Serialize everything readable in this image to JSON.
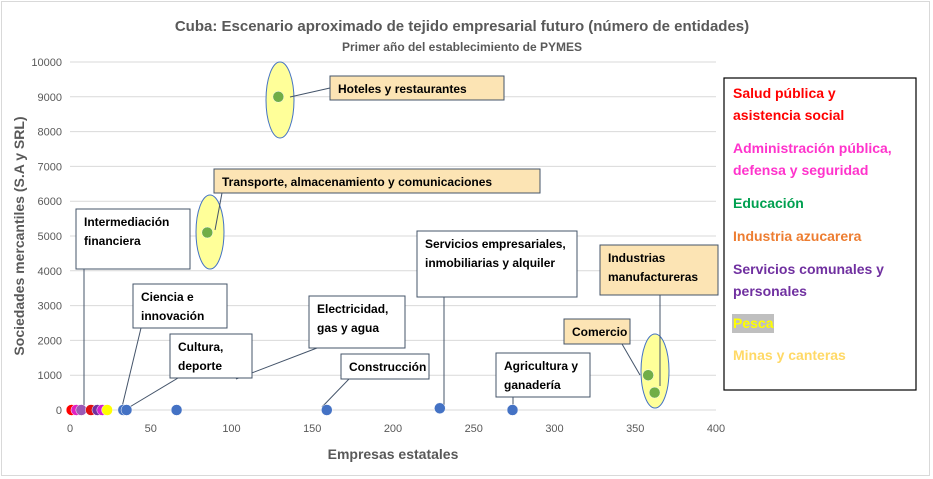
{
  "chart_data": {
    "type": "scatter",
    "title": "Cuba: Escenario aproximado de tejido empresarial futuro (número de entidades)",
    "subtitle": "Primer año del establecimiento de PYMES",
    "xlabel": "Empresas estatales",
    "ylabel": "Sociedades mercantiles (S.A y SRL)",
    "xlim": [
      0,
      400
    ],
    "ylim": [
      0,
      10000
    ],
    "x_ticks": [
      "0",
      "50",
      "100",
      "150",
      "200",
      "250",
      "300",
      "350",
      "400"
    ],
    "y_ticks": [
      "0",
      "1000",
      "2000",
      "3000",
      "4000",
      "5000",
      "6000",
      "7000",
      "8000",
      "9000",
      "10000"
    ],
    "grid": "horizontal",
    "legend_position": "right",
    "points": [
      {
        "x": 1,
        "y": 0,
        "color": "#ff0000"
      },
      {
        "x": 4,
        "y": 0,
        "color": "#e020c0"
      },
      {
        "x": 7,
        "y": 0,
        "color": "#9b59b6"
      },
      {
        "x": 13,
        "y": 0,
        "color": "#e01010"
      },
      {
        "x": 17,
        "y": 0,
        "color": "#7030a0"
      },
      {
        "x": 20,
        "y": 0,
        "color": "#d020d0"
      },
      {
        "x": 23,
        "y": 0,
        "color": "#ffff00"
      },
      {
        "x": 33,
        "y": 0,
        "color": "#4472c4"
      },
      {
        "x": 35,
        "y": 0,
        "color": "#4472c4"
      },
      {
        "x": 66,
        "y": 0,
        "color": "#4472c4"
      },
      {
        "x": 85,
        "y": 5100,
        "color": "#70ad47"
      },
      {
        "x": 129,
        "y": 9000,
        "color": "#70ad47"
      },
      {
        "x": 159,
        "y": 0,
        "color": "#4472c4"
      },
      {
        "x": 229,
        "y": 50,
        "color": "#4472c4"
      },
      {
        "x": 274,
        "y": 0,
        "color": "#4472c4"
      },
      {
        "x": 358,
        "y": 1000,
        "color": "#70ad47"
      },
      {
        "x": 362,
        "y": 500,
        "color": "#70ad47"
      }
    ],
    "annotations": [
      {
        "lines": [
          "Hoteles y restaurantes"
        ]
      },
      {
        "lines": [
          "Transporte, almacenamiento y comunicaciones"
        ]
      },
      {
        "lines": [
          "Intermediación",
          "financiera"
        ]
      },
      {
        "lines": [
          "Servicios empresariales,",
          "inmobiliarias y alquiler"
        ]
      },
      {
        "lines": [
          "Industrias",
          "manufactureras"
        ]
      },
      {
        "lines": [
          "Ciencia e",
          "innovación"
        ]
      },
      {
        "lines": [
          "Electricidad,",
          "gas y agua"
        ]
      },
      {
        "lines": [
          "Cultura,",
          "deporte"
        ]
      },
      {
        "lines": [
          "Construcción"
        ]
      },
      {
        "lines": [
          "Agricultura y",
          "ganadería"
        ]
      },
      {
        "lines": [
          "Comercio"
        ]
      }
    ],
    "legend": [
      {
        "lines": [
          "Salud pública y",
          "asistencia social"
        ],
        "color": "#ff0000"
      },
      {
        "lines": [
          "Administración pública,",
          "defensa y seguridad"
        ],
        "color": "#ff33cc"
      },
      {
        "lines": [
          "Educación"
        ],
        "color": "#00a050"
      },
      {
        "lines": [
          "Industria azucarera"
        ],
        "color": "#ed7d31"
      },
      {
        "lines": [
          "Servicios comunales y",
          "personales"
        ],
        "color": "#7030a0"
      },
      {
        "lines": [
          "Pesca"
        ],
        "color": "#ffff00"
      },
      {
        "lines": [
          "Minas y canteras"
        ],
        "color": "#ffd966"
      }
    ]
  }
}
